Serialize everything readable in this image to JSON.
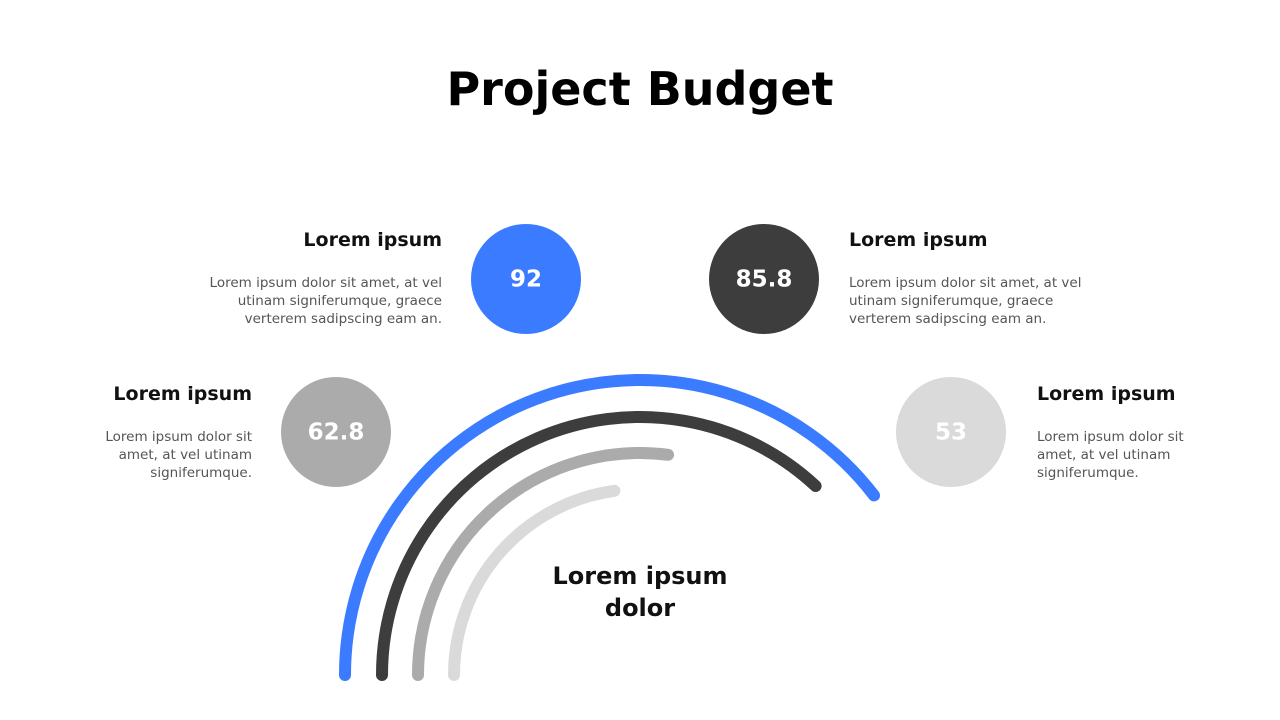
{
  "chart_data": {
    "type": "radial_bar",
    "title": "Project Budget",
    "center_label": "Lorem ipsum dolor",
    "series": [
      {
        "name": "Lorem ipsum",
        "description": "Lorem ipsum dolor sit amet, at vel utinam signiferumque, graece verterem sadipscing eam an.",
        "color": "#3b7bff",
        "values": [
          92
        ]
      },
      {
        "name": "Lorem ipsum",
        "description": "Lorem ipsum dolor sit amet, at vel utinam signiferumque, graece verterem sadipscing eam an.",
        "color": "#3d3d3d",
        "values": [
          85.8
        ]
      },
      {
        "name": "Lorem ipsum",
        "description": "Lorem ipsum dolor sit amet, at vel utinam signiferumque.",
        "color": "#ababab",
        "values": [
          62.8
        ]
      },
      {
        "name": "Lorem ipsum",
        "description": "Lorem ipsum dolor sit amet, at vel utinam signiferumque.",
        "color": "#dadada",
        "values": [
          53
        ]
      }
    ]
  }
}
